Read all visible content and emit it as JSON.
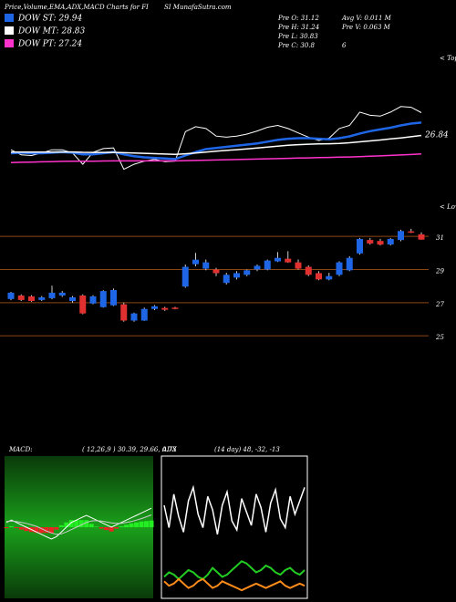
{
  "header": {
    "title_left": "Price,Volume,EMA,ADX,MACD Charts for FI",
    "title_right": "SI MunafaSutra.com",
    "stats_left": [
      "Pre  O: 31.12",
      "Pre  H: 31.24",
      "Pre  L: 30.83",
      "Pre  C: 30.8"
    ],
    "stats_extra": "6",
    "stats_right": [
      "Avg V: 0.011 M",
      "Pre  V: 0.063 M"
    ]
  },
  "chart_data": [
    {
      "type": "ema",
      "label": "< Tops",
      "annotation": "26.84",
      "ylim": [
        24,
        35
      ],
      "series": [
        {
          "name": "DOW ST: 29.94",
          "color": "#1e66e6",
          "values": [
            27.3,
            27.35,
            27.3,
            27.3,
            27.35,
            27.4,
            27.35,
            27.2,
            27.2,
            27.3,
            27.4,
            27.2,
            27.05,
            26.95,
            26.9,
            26.85,
            26.8,
            27.1,
            27.4,
            27.65,
            27.75,
            27.85,
            27.95,
            28.05,
            28.15,
            28.3,
            28.45,
            28.55,
            28.6,
            28.6,
            28.55,
            28.5,
            28.6,
            28.75,
            29.0,
            29.2,
            29.35,
            29.5,
            29.7,
            29.85,
            29.94
          ]
        },
        {
          "name": "DOW MT: 28.83",
          "color": "#ffffff",
          "values": [
            27.4,
            27.4,
            27.4,
            27.4,
            27.4,
            27.41,
            27.41,
            27.38,
            27.37,
            27.37,
            27.38,
            27.35,
            27.32,
            27.29,
            27.26,
            27.23,
            27.2,
            27.25,
            27.32,
            27.4,
            27.47,
            27.54,
            27.61,
            27.68,
            27.75,
            27.83,
            27.91,
            27.98,
            28.04,
            28.08,
            28.1,
            28.12,
            28.15,
            28.2,
            28.28,
            28.36,
            28.44,
            28.53,
            28.62,
            28.72,
            28.83
          ]
        },
        {
          "name": "DOW PT: 27.24",
          "color": "#ff33cc",
          "values": [
            26.5,
            26.52,
            26.54,
            26.56,
            26.58,
            26.6,
            26.61,
            26.62,
            26.62,
            26.63,
            26.64,
            26.64,
            26.64,
            26.64,
            26.64,
            26.64,
            26.64,
            26.66,
            26.68,
            26.7,
            26.72,
            26.74,
            26.76,
            26.78,
            26.8,
            26.82,
            26.84,
            26.86,
            26.88,
            26.9,
            26.92,
            26.94,
            26.96,
            26.98,
            27.01,
            27.04,
            27.07,
            27.11,
            27.15,
            27.19,
            27.24
          ]
        }
      ]
    },
    {
      "type": "candlestick",
      "label": "< Lows",
      "ylim": [
        24.9,
        32.05
      ],
      "yticks": [
        31,
        29,
        27,
        25
      ],
      "up_color": "#1e66e6",
      "down_color": "#e03030",
      "grid_color": "#8b4513",
      "open": [
        27.22,
        27.43,
        27.38,
        27.16,
        27.27,
        27.43,
        27.1,
        27.43,
        26.95,
        26.73,
        26.84,
        26.9,
        25.92,
        25.92,
        26.62,
        26.68,
        26.7,
        27.97,
        29.32,
        29.05,
        29.0,
        28.19,
        28.51,
        28.68,
        29.0,
        29.0,
        29.49,
        29.65,
        29.43,
        29.16,
        28.78,
        28.4,
        28.68,
        28.95,
        29.97,
        30.78,
        30.72,
        30.51,
        30.78,
        31.3,
        31.12
      ],
      "high": [
        27.65,
        27.5,
        27.45,
        27.4,
        28.03,
        27.7,
        27.4,
        27.5,
        27.45,
        27.75,
        27.85,
        27.0,
        26.4,
        26.7,
        26.85,
        26.75,
        26.75,
        29.3,
        30.0,
        29.6,
        29.1,
        28.8,
        28.9,
        29.0,
        29.3,
        29.6,
        30.05,
        30.1,
        29.6,
        29.25,
        28.9,
        28.8,
        29.5,
        29.8,
        30.9,
        30.9,
        30.85,
        30.9,
        31.4,
        31.45,
        31.24
      ],
      "low": [
        27.15,
        27.1,
        27.05,
        27.1,
        27.2,
        27.35,
        27.0,
        26.3,
        26.9,
        26.7,
        26.8,
        25.85,
        25.85,
        25.9,
        26.55,
        26.5,
        26.6,
        27.9,
        29.2,
        28.95,
        28.6,
        28.1,
        28.4,
        28.6,
        28.9,
        28.95,
        29.45,
        29.4,
        29.0,
        28.6,
        28.35,
        28.35,
        28.6,
        28.9,
        29.9,
        30.5,
        30.45,
        30.45,
        30.7,
        31.2,
        30.8
      ],
      "close": [
        27.6,
        27.16,
        27.1,
        27.32,
        27.6,
        27.6,
        27.32,
        26.35,
        27.38,
        27.7,
        27.76,
        25.92,
        26.35,
        26.62,
        26.78,
        26.57,
        26.62,
        29.16,
        29.59,
        29.43,
        28.78,
        28.68,
        28.78,
        28.95,
        29.22,
        29.54,
        29.7,
        29.43,
        29.05,
        28.68,
        28.4,
        28.6,
        29.43,
        29.7,
        30.84,
        30.57,
        30.5,
        30.84,
        31.32,
        31.26,
        30.8
      ]
    },
    {
      "type": "macd",
      "title": "MACD:",
      "subtitle": "( 12,26,9 ) 30.39, 29.66, 0.73",
      "ylim": [
        -1.5,
        1.5
      ],
      "series": [
        {
          "color": "#ffffff",
          "values": [
            0.1,
            0.15,
            0.1,
            0.05,
            0.0,
            -0.05,
            -0.1,
            -0.15,
            -0.2,
            -0.25,
            -0.2,
            -0.1,
            0.0,
            0.1,
            0.15,
            0.2,
            0.25,
            0.2,
            0.15,
            0.1,
            0.05,
            0.0,
            0.05,
            0.1,
            0.15,
            0.2,
            0.25,
            0.3,
            0.35,
            0.4
          ]
        },
        {
          "color": "#cccccc",
          "values": [
            0.12,
            0.13,
            0.12,
            0.1,
            0.08,
            0.05,
            0.02,
            -0.03,
            -0.08,
            -0.12,
            -0.15,
            -0.14,
            -0.1,
            -0.05,
            0.0,
            0.05,
            0.1,
            0.13,
            0.14,
            0.13,
            0.11,
            0.09,
            0.08,
            0.08,
            0.1,
            0.12,
            0.15,
            0.18,
            0.22,
            0.26
          ]
        }
      ],
      "histogram": [
        -0.02,
        0.02,
        -0.02,
        -0.05,
        -0.08,
        -0.1,
        -0.12,
        -0.12,
        -0.12,
        -0.13,
        -0.05,
        0.04,
        0.1,
        0.15,
        0.15,
        0.15,
        0.15,
        0.07,
        0.01,
        -0.03,
        -0.06,
        -0.09,
        -0.03,
        0.02,
        0.05,
        0.08,
        0.1,
        0.12,
        0.13,
        0.14
      ]
    },
    {
      "type": "adx",
      "title": "ADX",
      "subtitle": "(14 day) 48, -32, -13",
      "ylim": [
        0,
        60
      ],
      "series": [
        {
          "color": "#ffffff",
          "values": [
            40,
            30,
            45,
            35,
            28,
            42,
            48,
            36,
            30,
            44,
            38,
            27,
            40,
            46,
            33,
            29,
            43,
            37,
            31,
            45,
            39,
            28,
            41,
            47,
            34,
            30,
            44,
            36,
            42,
            48
          ]
        },
        {
          "color": "#22cc22",
          "values": [
            8,
            10,
            9,
            7,
            9,
            11,
            10,
            8,
            7,
            9,
            12,
            10,
            8,
            9,
            11,
            13,
            15,
            14,
            12,
            10,
            11,
            13,
            12,
            10,
            9,
            11,
            12,
            10,
            9,
            11
          ]
        },
        {
          "color": "#ff8c1a",
          "values": [
            6,
            4,
            5,
            7,
            5,
            3,
            4,
            6,
            7,
            5,
            3,
            4,
            6,
            5,
            4,
            3,
            2,
            3,
            4,
            5,
            4,
            3,
            4,
            5,
            6,
            4,
            3,
            4,
            5,
            4
          ]
        }
      ]
    }
  ]
}
